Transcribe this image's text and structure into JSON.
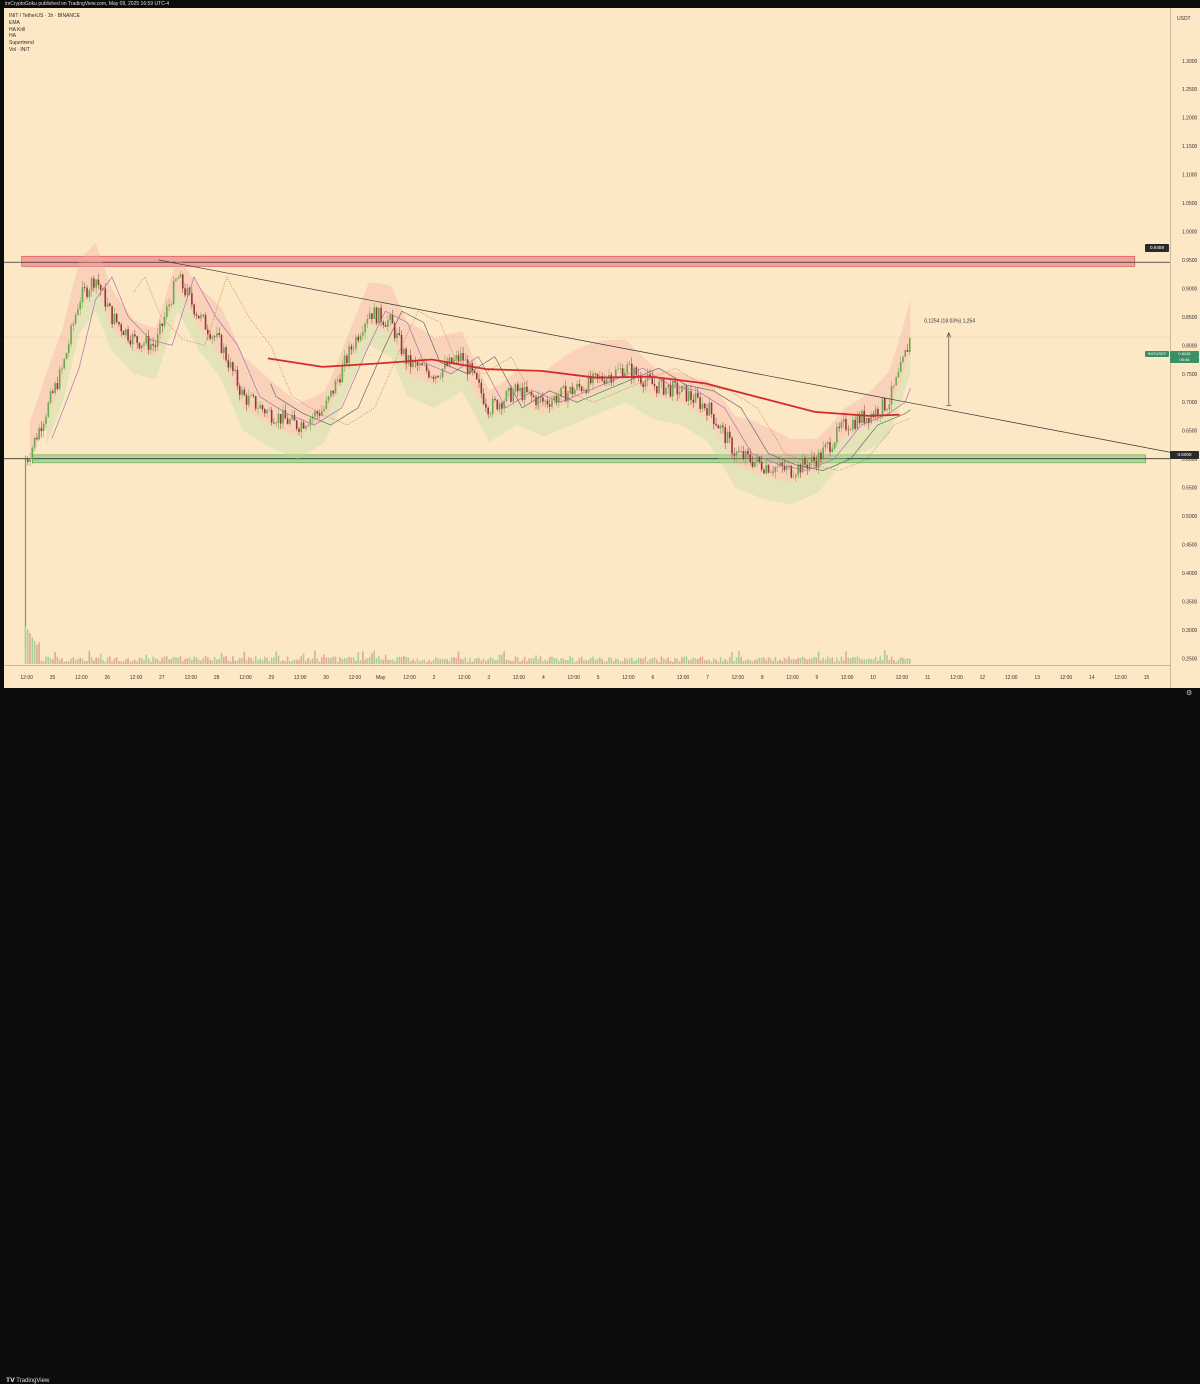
{
  "caption": "imCryptoGoku published on TradingView.com, May 09, 2025 16:59 UTC-4",
  "legend": [
    "INIT / TetherUS · 1h · BINANCE",
    "EMA",
    "HA Krill",
    "HA",
    "Supertrend",
    "Vol · INIT"
  ],
  "axis_title": "USDT",
  "price_ticks": [
    "1.3000",
    "1.2500",
    "1.2000",
    "1.1500",
    "1.1000",
    "1.0500",
    "1.0000",
    "0.9500",
    "0.9000",
    "0.8500",
    "0.8000",
    "0.7500",
    "0.7000",
    "0.6500",
    "0.6000",
    "0.5500",
    "0.5000",
    "0.4500",
    "0.4000",
    "0.3500",
    "0.3000",
    "0.2500"
  ],
  "time_ticks": [
    "12:00",
    "25",
    "12:00",
    "26",
    "12:00",
    "27",
    "12:00",
    "28",
    "12:00",
    "29",
    "12:00",
    "30",
    "12:00",
    "May",
    "12:00",
    "2",
    "12:00",
    "3",
    "12:00",
    "4",
    "12:00",
    "5",
    "12:00",
    "6",
    "12:00",
    "7",
    "12:00",
    "8",
    "12:00",
    "9",
    "12:00",
    "10",
    "12:00",
    "11",
    "12:00",
    "12",
    "12:00",
    "13",
    "12:00",
    "14",
    "12:00",
    "15"
  ],
  "tags": {
    "resistance": "0.9459",
    "current_symbol": "INITUSDT",
    "current_price": "0.8145",
    "countdown": "00:46",
    "support": "0.6008"
  },
  "measure_label": "0.1254 (18.03%) 1,254",
  "brand": "TradingView",
  "colors": {
    "background": "#fde8c6",
    "resistance_zone": "#f08a8a",
    "support_zone": "#9fd38d",
    "up_candle": "#6aa84f",
    "down_candle": "#8a3a3a",
    "ema_line": "#d42a2a"
  },
  "chart_data": {
    "type": "candlestick",
    "title": "INIT / TetherUS · 1h · BINANCE",
    "ylim": [
      0.24,
      1.34
    ],
    "resistance_zone": [
      0.9385,
      0.9565
    ],
    "support_zone": [
      0.5935,
      0.6075
    ],
    "resistance_level": 0.9459,
    "support_level": 0.6008,
    "last_price": 0.8145,
    "trendline": [
      {
        "day": 2.45,
        "price": 0.95
      },
      {
        "day": 20.95,
        "price": 0.612
      }
    ],
    "ema_curve": [
      {
        "day": 4.45,
        "price": 0.777
      },
      {
        "day": 5.45,
        "price": 0.762
      },
      {
        "day": 6.45,
        "price": 0.768
      },
      {
        "day": 7.45,
        "price": 0.775
      },
      {
        "day": 8.45,
        "price": 0.758
      },
      {
        "day": 9.45,
        "price": 0.755
      },
      {
        "day": 10.45,
        "price": 0.743
      },
      {
        "day": 11.45,
        "price": 0.745
      },
      {
        "day": 12.45,
        "price": 0.733
      },
      {
        "day": 13.45,
        "price": 0.708
      },
      {
        "day": 14.45,
        "price": 0.683
      },
      {
        "day": 15.45,
        "price": 0.676
      },
      {
        "day": 16,
        "price": 0.678
      }
    ],
    "close_path": [
      {
        "day": 0.05,
        "price": 0.6
      },
      {
        "day": 0.3,
        "price": 0.66
      },
      {
        "day": 0.7,
        "price": 0.76
      },
      {
        "day": 1.0,
        "price": 0.88
      },
      {
        "day": 1.3,
        "price": 0.92
      },
      {
        "day": 1.6,
        "price": 0.85
      },
      {
        "day": 2.0,
        "price": 0.81
      },
      {
        "day": 2.4,
        "price": 0.8
      },
      {
        "day": 2.8,
        "price": 0.92
      },
      {
        "day": 3.2,
        "price": 0.85
      },
      {
        "day": 3.6,
        "price": 0.8
      },
      {
        "day": 4.0,
        "price": 0.71
      },
      {
        "day": 4.5,
        "price": 0.68
      },
      {
        "day": 5.0,
        "price": 0.66
      },
      {
        "day": 5.5,
        "price": 0.69
      },
      {
        "day": 6.0,
        "price": 0.8
      },
      {
        "day": 6.3,
        "price": 0.86
      },
      {
        "day": 6.7,
        "price": 0.84
      },
      {
        "day": 7.0,
        "price": 0.77
      },
      {
        "day": 7.5,
        "price": 0.75
      },
      {
        "day": 8.0,
        "price": 0.78
      },
      {
        "day": 8.5,
        "price": 0.69
      },
      {
        "day": 9.0,
        "price": 0.72
      },
      {
        "day": 9.5,
        "price": 0.7
      },
      {
        "day": 10.0,
        "price": 0.72
      },
      {
        "day": 10.5,
        "price": 0.74
      },
      {
        "day": 11.0,
        "price": 0.76
      },
      {
        "day": 11.5,
        "price": 0.73
      },
      {
        "day": 12.0,
        "price": 0.72
      },
      {
        "day": 12.5,
        "price": 0.69
      },
      {
        "day": 13.0,
        "price": 0.61
      },
      {
        "day": 13.5,
        "price": 0.59
      },
      {
        "day": 14.0,
        "price": 0.58
      },
      {
        "day": 14.5,
        "price": 0.6
      },
      {
        "day": 15.0,
        "price": 0.66
      },
      {
        "day": 15.5,
        "price": 0.68
      },
      {
        "day": 15.8,
        "price": 0.7
      },
      {
        "day": 16.0,
        "price": 0.75
      },
      {
        "day": 16.2,
        "price": 0.8145
      }
    ]
  }
}
